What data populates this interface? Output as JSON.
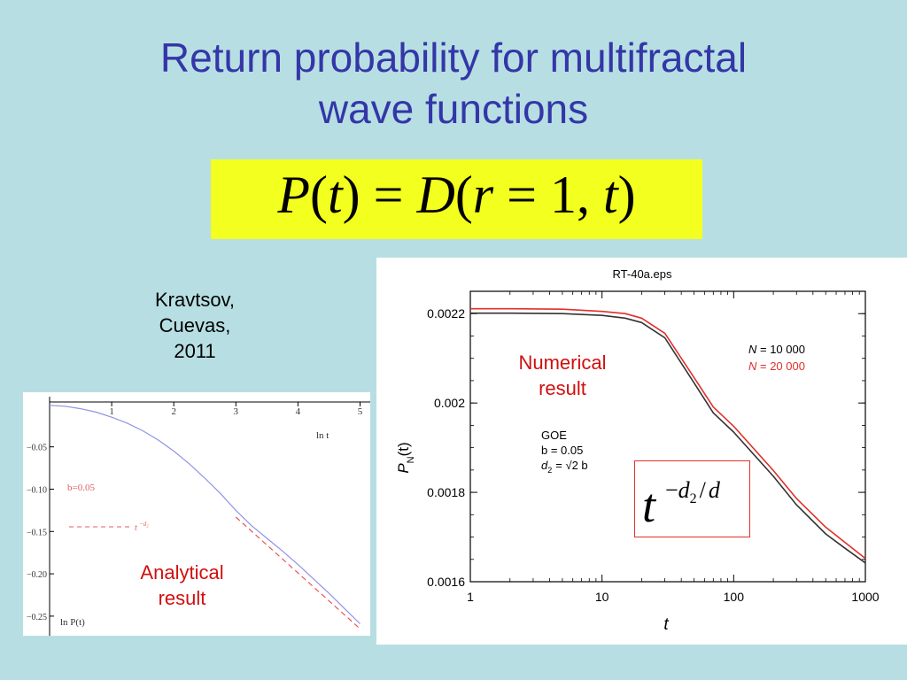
{
  "slide": {
    "title_line1": "Return probability for multifractal",
    "title_line2": "wave functions",
    "equation": {
      "P": "P",
      "t": "t",
      "D": "D",
      "r": "r",
      "one": "1"
    },
    "authors": [
      "Kravtsov,",
      "Cuevas,",
      "2011"
    ],
    "analytical_label": [
      "Analytical",
      "result"
    ],
    "numerical_label": [
      "Numerical",
      "result"
    ],
    "formula_box": {
      "base": "t",
      "exp_minus": "−",
      "d": "d",
      "sub2": "2",
      "slash": "/",
      "d_end": "d"
    },
    "colors": {
      "background": "#b7dfe3",
      "title": "#3436a8",
      "equation_bg": "#f3ff1e",
      "label_red": "#d10f0f"
    }
  },
  "chart_data": [
    {
      "type": "line",
      "xlabel": "ln t",
      "ylabel": "ln P(t)",
      "xlim": [
        0,
        5.05
      ],
      "ylim": [
        -0.27,
        0.003
      ],
      "xticks": [
        1,
        2,
        3,
        4,
        5
      ],
      "yticks": [
        -0.05,
        -0.1,
        -0.15,
        -0.2,
        -0.25
      ],
      "ytick_labels": [
        "−0.05",
        "−0.10",
        "−0.15",
        "−0.20",
        "−0.25"
      ],
      "annotations": {
        "b": "b=0.05",
        "legend_dash": "t",
        "legend_sup": "−d₂"
      },
      "series": [
        {
          "color": "#8f93e6",
          "style": "solid",
          "x": [
            0,
            0.25,
            0.5,
            0.75,
            1.0,
            1.25,
            1.5,
            1.75,
            2.0,
            2.25,
            2.5,
            2.75,
            3.0,
            3.25,
            3.5,
            3.75,
            4.0,
            4.25,
            4.5,
            4.75,
            5.0
          ],
          "y": [
            -0.001,
            -0.002,
            -0.005,
            -0.009,
            -0.015,
            -0.022,
            -0.031,
            -0.042,
            -0.055,
            -0.07,
            -0.087,
            -0.105,
            -0.125,
            -0.143,
            -0.158,
            -0.173,
            -0.189,
            -0.206,
            -0.223,
            -0.241,
            -0.259
          ]
        },
        {
          "color": "#ec5454",
          "style": "dashed",
          "x": [
            3.0,
            5.0
          ],
          "y": [
            -0.133,
            -0.265
          ]
        }
      ]
    },
    {
      "type": "line",
      "title": "RT-40a.eps",
      "xlabel": "t",
      "ylabel_main": "P",
      "ylabel_sub": "N",
      "ylabel_arg": "(t)",
      "xscale": "log",
      "xlim": [
        1,
        1000
      ],
      "ylim": [
        0.0016,
        0.00225
      ],
      "xticks": [
        1,
        10,
        100,
        1000
      ],
      "xtick_labels": [
        "1",
        "10",
        "100",
        "1000"
      ],
      "yticks": [
        0.0016,
        0.0018,
        0.002,
        0.0022
      ],
      "ytick_labels": [
        "0.0016",
        "0.0018",
        "0.002",
        "0.0022"
      ],
      "legend": [
        {
          "prefix": "N",
          "text": " = 10 000",
          "color": "#000000"
        },
        {
          "prefix": "N",
          "text": " = 20 000",
          "color": "#e0302b"
        }
      ],
      "params": [
        "GOE",
        "b = 0.05",
        "= √2 b"
      ],
      "param_d2": "d",
      "param_d2_sub": "2",
      "series": [
        {
          "color": "#333333",
          "x": [
            1,
            2,
            5,
            10,
            15,
            20,
            30,
            50,
            70,
            100,
            200,
            300,
            500,
            700,
            1000
          ],
          "y": [
            0.002201,
            0.002201,
            0.0022,
            0.002196,
            0.00219,
            0.00218,
            0.002146,
            0.002045,
            0.001978,
            0.001935,
            0.001836,
            0.001772,
            0.001707,
            0.001675,
            0.001642
          ]
        },
        {
          "color": "#e0302b",
          "x": [
            1,
            2,
            5,
            10,
            15,
            20,
            30,
            50,
            70,
            100,
            200,
            300,
            500,
            700,
            1000
          ],
          "y": [
            0.002211,
            0.002211,
            0.00221,
            0.002205,
            0.0022,
            0.00219,
            0.002156,
            0.002057,
            0.001991,
            0.001948,
            0.001849,
            0.001786,
            0.001722,
            0.001688,
            0.001652
          ]
        }
      ]
    }
  ]
}
